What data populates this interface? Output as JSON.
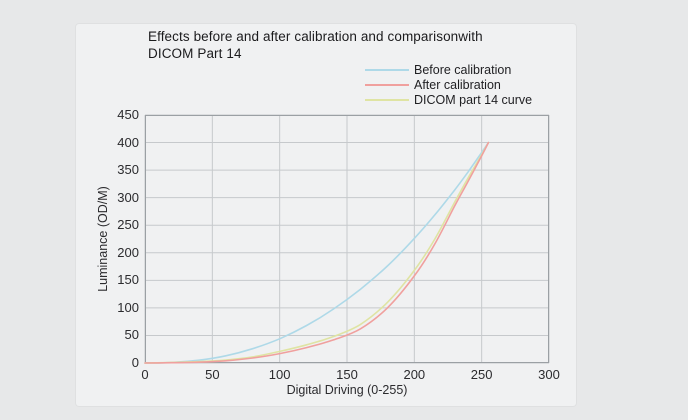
{
  "title": {
    "lines": [
      "Effects before and after calibration and comparisonwith",
      "DICOM Part 14"
    ]
  },
  "chart_data": {
    "type": "line",
    "title": "Effects before and after calibration and comparisonwith DICOM Part 14",
    "xlabel": "Digital Driving (0-255)",
    "ylabel": "Luminance (OD/M)",
    "xlim": [
      0,
      300
    ],
    "ylim": [
      0,
      450
    ],
    "xticks": [
      0,
      50,
      100,
      150,
      200,
      250,
      300
    ],
    "yticks": [
      0,
      50,
      100,
      150,
      200,
      250,
      300,
      350,
      400,
      450
    ],
    "grid": true,
    "legend_position": "top-right",
    "colors": {
      "grid": "#c6c9cc",
      "plot_border": "#9ba0a4",
      "panel_background": "#f0f1f2",
      "page_background": "#e7e8e9",
      "text": "#1b1b1d"
    },
    "series": [
      {
        "name": "Before calibration",
        "color": "#aed9e8",
        "points": [
          [
            0,
            0
          ],
          [
            20,
            1
          ],
          [
            40,
            5
          ],
          [
            60,
            13
          ],
          [
            80,
            26
          ],
          [
            100,
            44
          ],
          [
            120,
            68
          ],
          [
            140,
            98
          ],
          [
            160,
            134
          ],
          [
            180,
            176
          ],
          [
            200,
            226
          ],
          [
            215,
            268
          ],
          [
            230,
            314
          ],
          [
            240,
            347
          ],
          [
            250,
            382
          ],
          [
            255,
            400
          ]
        ]
      },
      {
        "name": "After calibration",
        "color": "#f0a09e",
        "points": [
          [
            0,
            0
          ],
          [
            20,
            0.5
          ],
          [
            40,
            1.5
          ],
          [
            60,
            4
          ],
          [
            80,
            9
          ],
          [
            100,
            17
          ],
          [
            120,
            28
          ],
          [
            140,
            42
          ],
          [
            160,
            62
          ],
          [
            180,
            100
          ],
          [
            200,
            158
          ],
          [
            215,
            215
          ],
          [
            230,
            285
          ],
          [
            240,
            330
          ],
          [
            250,
            376
          ],
          [
            255,
            400
          ]
        ]
      },
      {
        "name": "DICOM part 14 curve",
        "color": "#dfe4a3",
        "points": [
          [
            0,
            0
          ],
          [
            20,
            1
          ],
          [
            40,
            2.5
          ],
          [
            60,
            5.5
          ],
          [
            80,
            11
          ],
          [
            100,
            21
          ],
          [
            120,
            33
          ],
          [
            140,
            48
          ],
          [
            160,
            70
          ],
          [
            180,
            110
          ],
          [
            200,
            168
          ],
          [
            215,
            224
          ],
          [
            230,
            292
          ],
          [
            240,
            336
          ],
          [
            250,
            378
          ],
          [
            255,
            400
          ]
        ]
      }
    ]
  }
}
